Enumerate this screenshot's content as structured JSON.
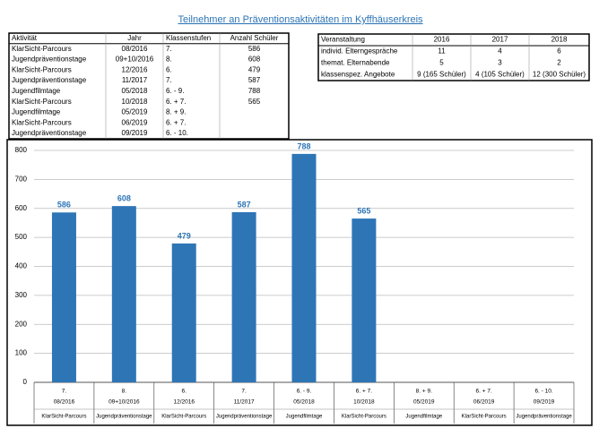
{
  "title": "Teilnehmer an Präventionsaktivitäten im Kyffhäuserkreis",
  "table1": {
    "columns": [
      "Aktivität",
      "Jahr",
      "Klassenstufen",
      "Anzahl Schüler"
    ],
    "rows": [
      [
        "KlarSicht-Parcours",
        "08/2016",
        "7.",
        586
      ],
      [
        "Jugendpräventionstage",
        "09+10/2016",
        "8.",
        608
      ],
      [
        "KlarSicht-Parcours",
        "12/2016",
        "6.",
        479
      ],
      [
        "Jugendpräventionstage",
        "11/2017",
        "7.",
        587
      ],
      [
        "Jugendfilmtage",
        "05/2018",
        "6. - 9.",
        788
      ],
      [
        "KlarSicht-Parcours",
        "10/2018",
        "6. + 7.",
        565
      ],
      [
        "Jugendfilmtage",
        "05/2019",
        "8. + 9.",
        null
      ],
      [
        "KlarSicht-Parcours",
        "06/2019",
        "6. + 7.",
        null
      ],
      [
        "Jugendpräventionstage",
        "09/2019",
        "6. - 10.",
        null
      ]
    ]
  },
  "table2": {
    "columns": [
      "Veranstaltung",
      "2016",
      "2017",
      "2018"
    ],
    "rows": [
      [
        "individ. Elterngespräche",
        11,
        4,
        6
      ],
      [
        "themat. Elternabende",
        5,
        3,
        2
      ],
      [
        "klassenspez. Angebote",
        "9 (165 Schüler)",
        "4 (105 Schüler)",
        "12 (300 Schüler)"
      ]
    ]
  },
  "chart_data": {
    "type": "bar",
    "class_levels": [
      "7.",
      "8.",
      "6.",
      "7.",
      "6. - 9.",
      "6. + 7.",
      "8. + 9.",
      "6. + 7.",
      "6. - 10."
    ],
    "categories": [
      "08/2016",
      "09+10/2016",
      "12/2016",
      "11/2017",
      "05/2018",
      "10/2018",
      "05/2019",
      "06/2019",
      "09/2019"
    ],
    "activities": [
      "KlarSicht-Parcours",
      "Jugendpräventionstage",
      "KlarSicht-Parcours",
      "Jugendpräventionstage",
      "Jugendfilmtage",
      "KlarSicht-Parcours",
      "Jugendfilmtage",
      "KlarSicht-Parcours",
      "Jugendpräventionstage"
    ],
    "values": [
      586,
      608,
      479,
      587,
      788,
      565,
      null,
      null,
      null
    ],
    "color": "#2e75b6",
    "ylim": [
      0,
      800
    ],
    "yticks": [
      0,
      100,
      200,
      300,
      400,
      500,
      600,
      700,
      800
    ],
    "grid": true
  }
}
